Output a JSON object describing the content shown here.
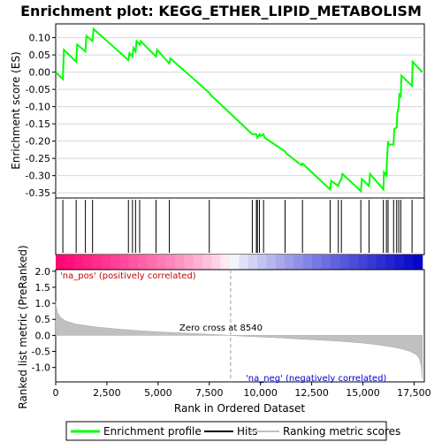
{
  "chart_data": {
    "type": "line",
    "title": "Enrichment plot: KEGG_ETHER_LIPID_METABOLISM",
    "xlabel": "Rank in Ordered Dataset",
    "top_panel": {
      "ylabel": "Enrichment score (ES)",
      "ylim": [
        -0.365,
        0.14
      ],
      "yticks": [
        "0.10",
        "0.05",
        "0.00",
        "-0.05",
        "-0.10",
        "-0.15",
        "-0.20",
        "-0.25",
        "-0.30",
        "-0.35"
      ],
      "ytick_values": [
        0.1,
        0.05,
        0.0,
        -0.05,
        -0.1,
        -0.15,
        -0.2,
        -0.25,
        -0.3,
        -0.35
      ],
      "grid": true,
      "line_color": "#00ff00",
      "series_name": "Enrichment profile",
      "es_profile": {
        "x": [
          0,
          350,
          400,
          1000,
          1050,
          1450,
          1500,
          1800,
          1850,
          3550,
          3600,
          3750,
          3800,
          3900,
          3950,
          4100,
          4150,
          4900,
          4950,
          5550,
          5600,
          7500,
          7550,
          9600,
          9650,
          9800,
          9850,
          9950,
          10000,
          10150,
          10200,
          11200,
          11250,
          12000,
          12050,
          13400,
          13450,
          13800,
          13850,
          13950,
          14000,
          14900,
          14950,
          15300,
          15350,
          16000,
          16030,
          16150,
          16180,
          16230,
          16260,
          16500,
          16530,
          16650,
          16680,
          16750,
          16780,
          16850,
          16880,
          17400,
          17430,
          17900
        ],
        "y": [
          0.0,
          -0.02,
          0.065,
          0.03,
          0.08,
          0.06,
          0.105,
          0.09,
          0.125,
          0.035,
          0.055,
          0.045,
          0.07,
          0.06,
          0.09,
          0.08,
          0.09,
          0.045,
          0.065,
          0.025,
          0.04,
          -0.06,
          -0.065,
          -0.18,
          -0.18,
          -0.18,
          -0.19,
          -0.18,
          -0.185,
          -0.18,
          -0.19,
          -0.23,
          -0.235,
          -0.27,
          -0.265,
          -0.34,
          -0.315,
          -0.33,
          -0.32,
          -0.31,
          -0.295,
          -0.345,
          -0.31,
          -0.33,
          -0.295,
          -0.34,
          -0.29,
          -0.3,
          -0.25,
          -0.2,
          -0.21,
          -0.21,
          -0.165,
          -0.16,
          -0.12,
          -0.1,
          -0.065,
          -0.07,
          -0.01,
          -0.04,
          0.03,
          0.0
        ]
      }
    },
    "hits_panel": {
      "series_name": "Hits",
      "hits": [
        350,
        1000,
        1450,
        1800,
        3550,
        3750,
        3900,
        4100,
        4900,
        5550,
        7500,
        9600,
        9800,
        9850,
        9950,
        10150,
        11200,
        12050,
        13400,
        13800,
        13950,
        14900,
        15300,
        16000,
        16150,
        16230,
        16500,
        16650,
        16750,
        16850,
        17400
      ]
    },
    "rank_panel": {
      "ylabel": "Ranked list metric (PreRanked)",
      "ylim": [
        -1.45,
        2.05
      ],
      "yticks": [
        "2.0",
        "1.5",
        "1.0",
        "0.5",
        "0.0",
        "-0.5",
        "-1.0"
      ],
      "ytick_values": [
        2.0,
        1.5,
        1.0,
        0.5,
        0.0,
        -0.5,
        -1.0
      ],
      "series_name": "Ranking metric scores",
      "metric_curve": {
        "x": [
          0,
          30,
          100,
          250,
          500,
          1000,
          2000,
          3000,
          4000,
          5000,
          6000,
          7000,
          8000,
          8540,
          9000,
          10000,
          11000,
          12000,
          13000,
          14000,
          15000,
          15800,
          16400,
          16900,
          17300,
          17600,
          17750,
          17850,
          17900
        ],
        "y": [
          1.05,
          0.9,
          0.7,
          0.55,
          0.45,
          0.35,
          0.26,
          0.2,
          0.15,
          0.11,
          0.08,
          0.05,
          0.02,
          0.0,
          -0.02,
          -0.05,
          -0.08,
          -0.12,
          -0.15,
          -0.19,
          -0.24,
          -0.3,
          -0.36,
          -0.42,
          -0.5,
          -0.6,
          -0.72,
          -0.95,
          -1.35
        ]
      },
      "zero_cross_label": "Zero cross at 8540",
      "zero_cross": 8540,
      "pos_label": "'na_pos' (positively correlated)",
      "neg_label": "'na_neg' (negatively correlated)"
    },
    "xaxis": {
      "xlim": [
        0,
        18000
      ],
      "xticks": [
        "0",
        "2,500",
        "5,000",
        "7,500",
        "10,000",
        "12,500",
        "15,000",
        "17,500"
      ],
      "xtick_values": [
        0,
        2500,
        5000,
        7500,
        10000,
        12500,
        15000,
        17500
      ],
      "n_genes": 17900
    },
    "legend": {
      "placement": "bottom",
      "entries": [
        "Enrichment profile",
        "Hits",
        "Ranking metric scores"
      ]
    }
  }
}
